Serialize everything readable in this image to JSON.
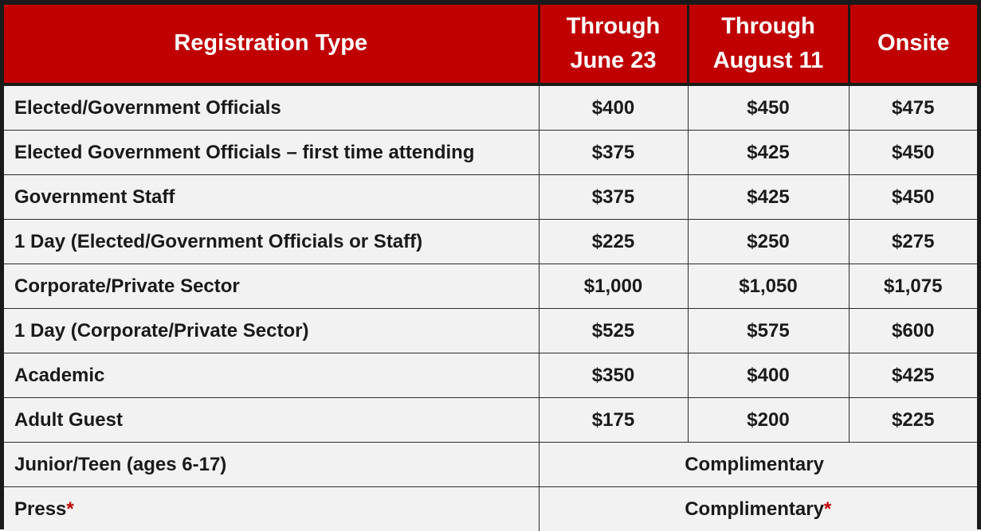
{
  "headers": {
    "type": "Registration Type",
    "june_line1": "Through",
    "june_line2": "June 23",
    "aug_line1": "Through",
    "aug_line2": "August 11",
    "onsite": "Onsite"
  },
  "rows": [
    {
      "type": "Elected/Government Officials",
      "june": "$400",
      "aug": "$450",
      "onsite": "$475"
    },
    {
      "type": "Elected Government Officials – first time attending",
      "june": "$375",
      "aug": "$425",
      "onsite": "$450"
    },
    {
      "type": "Government Staff",
      "june": "$375",
      "aug": "$425",
      "onsite": "$450"
    },
    {
      "type": "1 Day (Elected/Government Officials or Staff)",
      "june": "$225",
      "aug": "$250",
      "onsite": "$275"
    },
    {
      "type": "Corporate/Private Sector",
      "june": "$1,000",
      "aug": "$1,050",
      "onsite": "$1,075"
    },
    {
      "type": "1 Day (Corporate/Private Sector)",
      "june": "$525",
      "aug": "$575",
      "onsite": "$600"
    },
    {
      "type": "Academic",
      "june": "$350",
      "aug": "$400",
      "onsite": "$425"
    },
    {
      "type": "Adult Guest",
      "june": "$175",
      "aug": "$200",
      "onsite": "$225"
    }
  ],
  "complimentary_rows": [
    {
      "type": "Junior/Teen (ages 6-17)",
      "value": "Complimentary",
      "asterisk": "*"
    },
    {
      "type": "Press",
      "type_asterisk": "*",
      "value": "Complimentary",
      "asterisk": "*"
    }
  ],
  "colors": {
    "header_bg": "#c00000",
    "header_text": "#ffffff",
    "cell_bg": "#f2f2f2",
    "border": "#1a1a1a",
    "asterisk": "#c00000"
  }
}
